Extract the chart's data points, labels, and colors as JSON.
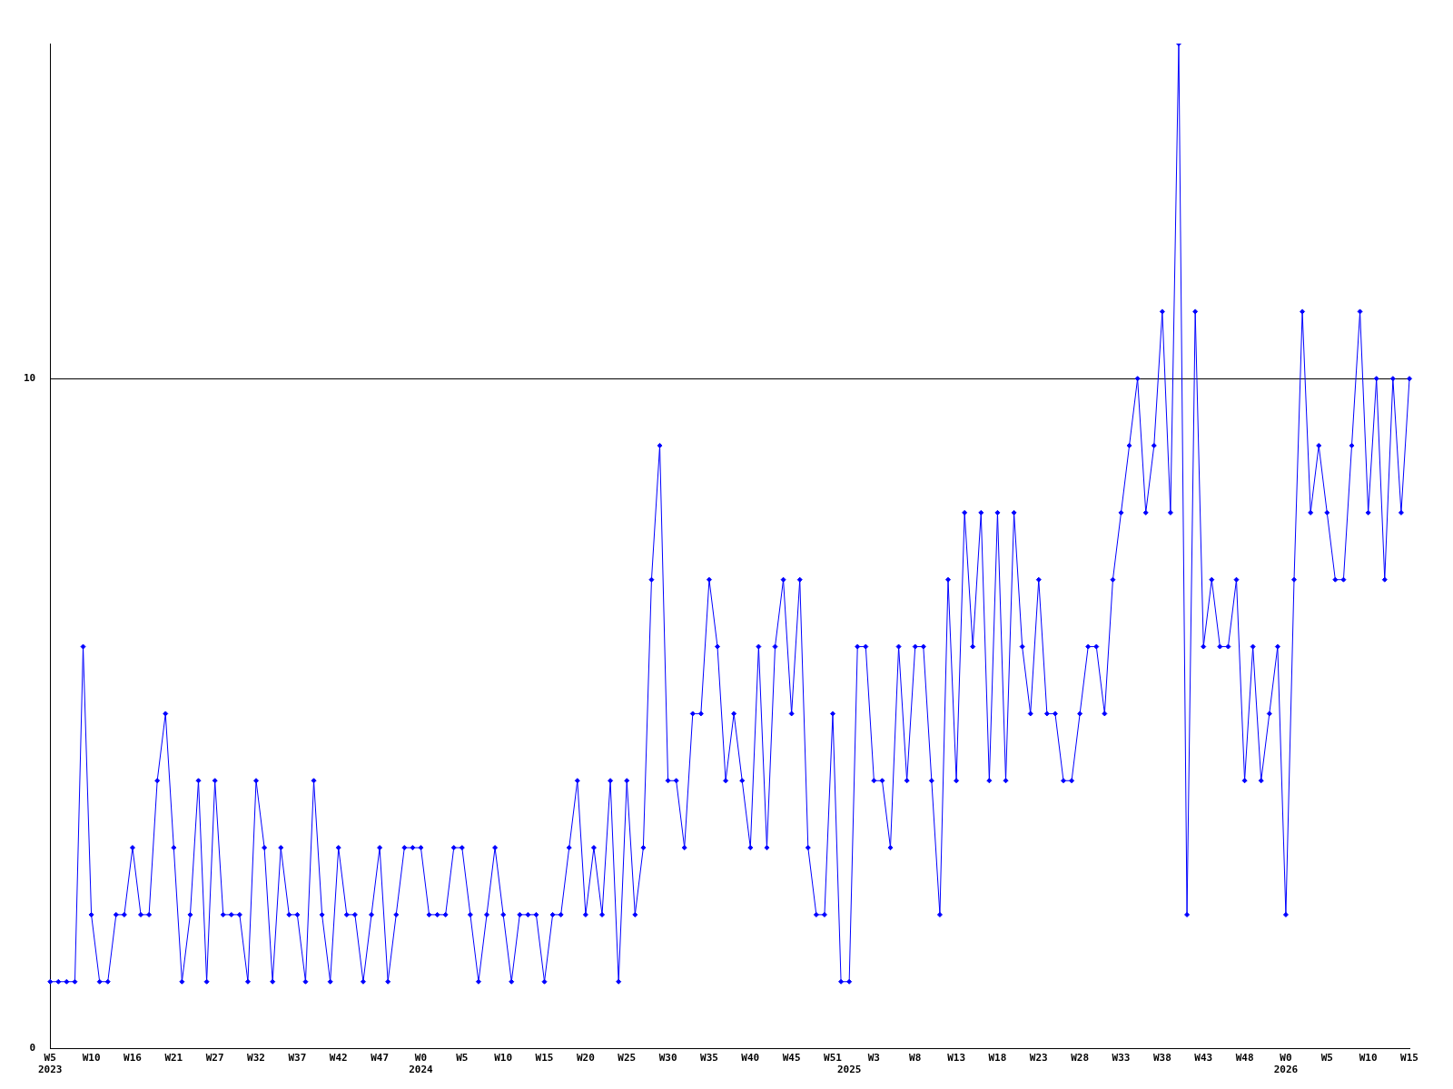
{
  "chart_data": {
    "type": "line",
    "categories": [
      "W5\n2023",
      null,
      null,
      null,
      null,
      "W10",
      null,
      null,
      null,
      null,
      "W16",
      null,
      null,
      null,
      null,
      "W21",
      null,
      null,
      null,
      null,
      "W27",
      null,
      null,
      null,
      null,
      "W32",
      null,
      null,
      null,
      null,
      "W37",
      null,
      null,
      null,
      null,
      "W42",
      null,
      null,
      null,
      null,
      "W47",
      null,
      null,
      null,
      null,
      "W0\n2024",
      null,
      null,
      null,
      null,
      "W5",
      null,
      null,
      null,
      null,
      "W10",
      null,
      null,
      null,
      null,
      "W15",
      null,
      null,
      null,
      null,
      "W20",
      null,
      null,
      null,
      null,
      "W25",
      null,
      null,
      null,
      null,
      "W30",
      null,
      null,
      null,
      null,
      "W35",
      null,
      null,
      null,
      null,
      "W40",
      null,
      null,
      null,
      null,
      "W45",
      null,
      null,
      null,
      null,
      "W51",
      null,
      "\n2025",
      null,
      null,
      "W3",
      null,
      null,
      null,
      null,
      "W8",
      null,
      null,
      null,
      null,
      "W13",
      null,
      null,
      null,
      null,
      "W18",
      null,
      null,
      null,
      null,
      "W23",
      null,
      null,
      null,
      null,
      "W28",
      null,
      null,
      null,
      null,
      "W33",
      null,
      null,
      null,
      null,
      "W38",
      null,
      null,
      null,
      null,
      "W43",
      null,
      null,
      null,
      null,
      "W48",
      null,
      null,
      null,
      null,
      "W0\n2026",
      null,
      null,
      null,
      null,
      "W5",
      null,
      null,
      null,
      null,
      "W10",
      null,
      null,
      null,
      null,
      "W15"
    ],
    "series": [
      {
        "color": "#0000ff",
        "values": [
          1,
          1,
          1,
          1,
          6,
          2,
          1,
          1,
          2,
          2,
          3,
          2,
          2,
          4,
          5,
          3,
          1,
          2,
          4,
          1,
          4,
          2,
          2,
          2,
          1,
          4,
          3,
          1,
          3,
          2,
          2,
          1,
          4,
          2,
          1,
          3,
          2,
          2,
          1,
          2,
          3,
          1,
          2,
          3,
          3,
          3,
          2,
          2,
          2,
          3,
          3,
          2,
          1,
          2,
          3,
          2,
          1,
          2,
          2,
          2,
          1,
          2,
          2,
          3,
          4,
          2,
          3,
          2,
          4,
          1,
          4,
          2,
          3,
          7,
          9,
          4,
          4,
          3,
          5,
          5,
          7,
          6,
          4,
          5,
          4,
          3,
          6,
          3,
          6,
          7,
          5,
          7,
          3,
          2,
          2,
          5,
          1,
          1,
          6,
          6,
          4,
          4,
          3,
          6,
          4,
          6,
          6,
          4,
          2,
          7,
          4,
          8,
          6,
          8,
          4,
          8,
          4,
          8,
          6,
          5,
          7,
          5,
          5,
          4,
          4,
          5,
          6,
          6,
          5,
          7,
          8,
          9,
          10,
          8,
          9,
          11,
          8,
          15,
          2,
          11,
          6,
          7,
          6,
          6,
          7,
          4,
          6,
          4,
          5,
          6,
          2,
          7,
          11,
          8,
          9,
          8,
          7,
          7,
          9,
          11,
          8,
          10,
          7,
          10,
          8,
          10
        ]
      }
    ],
    "ylim": [
      0,
      15
    ],
    "yticks": [
      0,
      10
    ],
    "grid": "y",
    "marker": "diamond",
    "line_style": "solid"
  }
}
